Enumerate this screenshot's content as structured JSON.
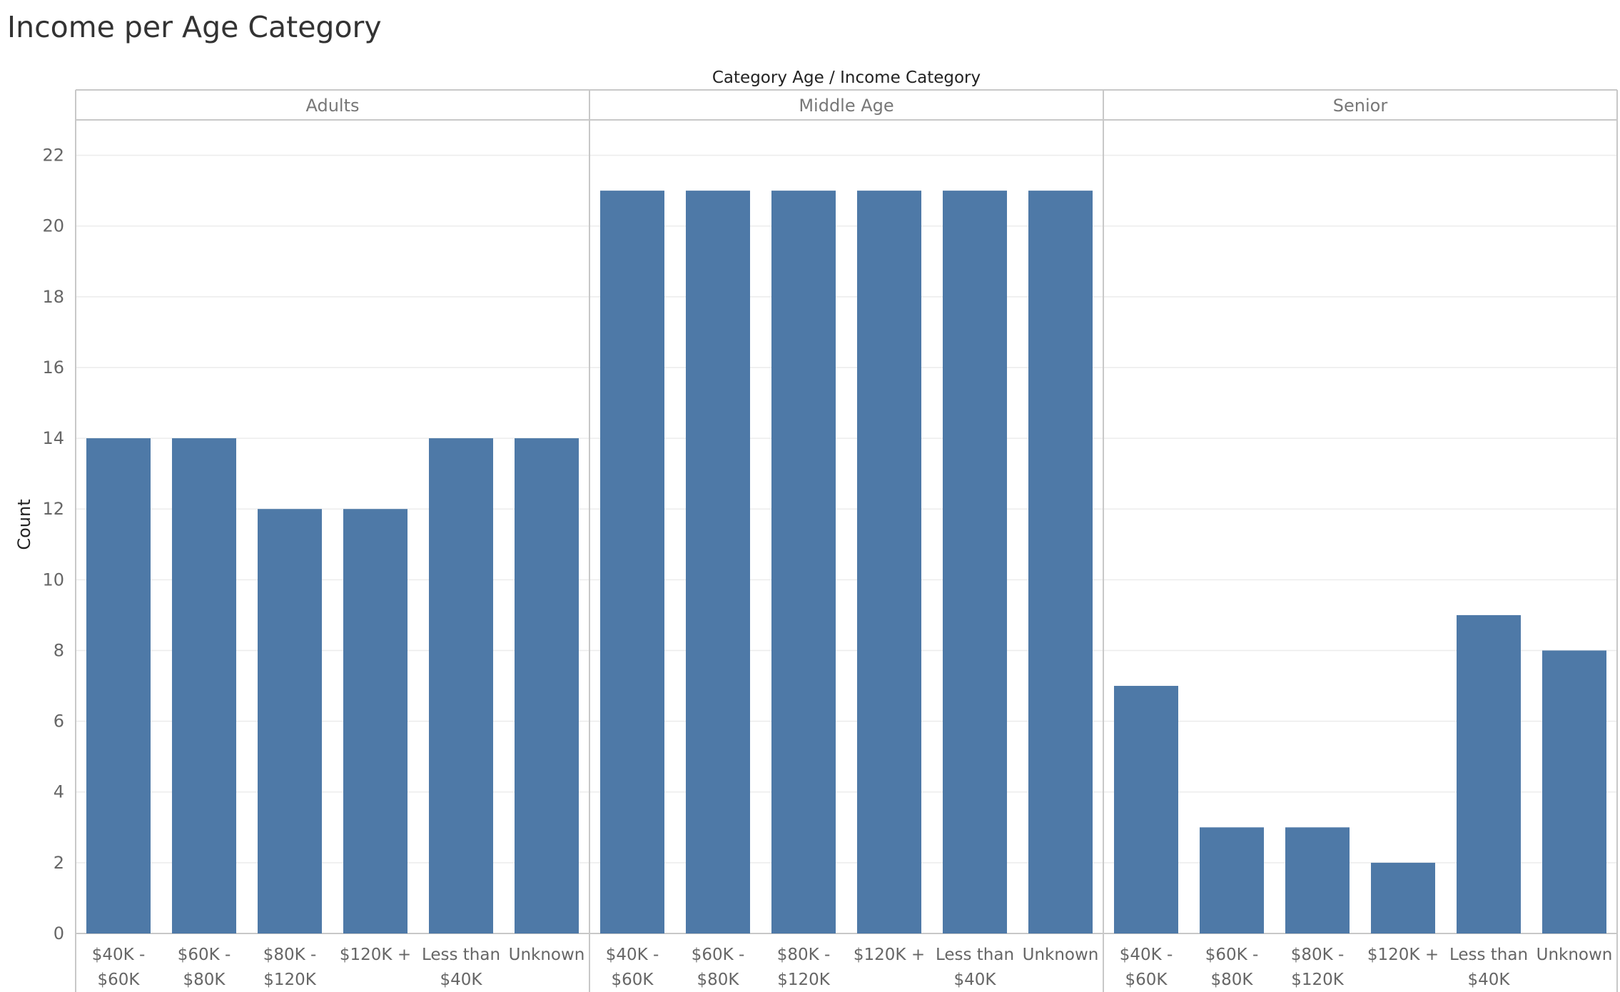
{
  "chart_data": {
    "type": "bar",
    "title": "Income per Age Category",
    "header_label": "Category Age  /  Income Category",
    "ylabel": "Count",
    "ylim": [
      0,
      23
    ],
    "yticks": [
      0,
      2,
      4,
      6,
      8,
      10,
      12,
      14,
      16,
      18,
      20,
      22
    ],
    "grid": true,
    "bar_color": "#4e79a7",
    "categories": [
      [
        "$40K -",
        "$60K"
      ],
      [
        "$60K -",
        "$80K"
      ],
      [
        "$80K -",
        "$120K"
      ],
      [
        "$120K +"
      ],
      [
        "Less than",
        "$40K"
      ],
      [
        "Unknown"
      ]
    ],
    "panels": [
      {
        "name": "Adults",
        "values": [
          14,
          14,
          12,
          12,
          14,
          14
        ]
      },
      {
        "name": "Middle Age",
        "values": [
          21,
          21,
          21,
          21,
          21,
          21
        ]
      },
      {
        "name": "Senior",
        "values": [
          7,
          3,
          3,
          2,
          9,
          8
        ]
      }
    ]
  }
}
